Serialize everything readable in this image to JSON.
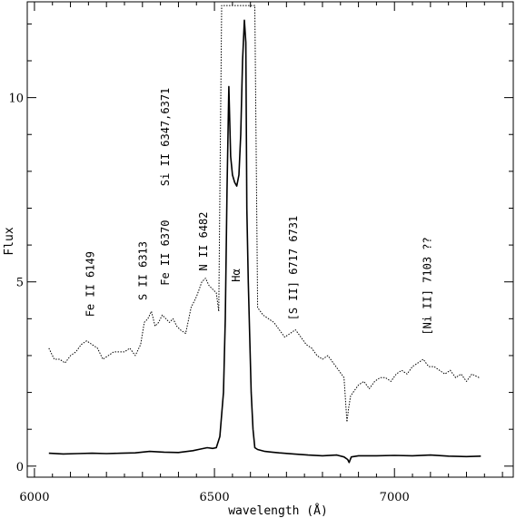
{
  "chart_data": {
    "type": "line",
    "title": "",
    "xlabel": "wavelength (Å)",
    "ylabel": "Flux",
    "xlim": [
      5980,
      7330
    ],
    "ylim": [
      -0.3,
      12.6
    ],
    "grid": false,
    "legend": "none",
    "x_ticks": [
      {
        "value": 6000,
        "label": "6000"
      },
      {
        "value": 6500,
        "label": "6500"
      },
      {
        "value": 7000,
        "label": "7000"
      }
    ],
    "y_ticks": [
      {
        "value": 0,
        "label": "0"
      },
      {
        "value": 5,
        "label": "5"
      },
      {
        "value": 10,
        "label": "10"
      }
    ],
    "series": [
      {
        "style": "dotted",
        "x": [
          6040,
          6055,
          6070,
          6085,
          6100,
          6115,
          6130,
          6145,
          6160,
          6175,
          6190,
          6205,
          6220,
          6235,
          6250,
          6265,
          6280,
          6295,
          6305,
          6315,
          6325,
          6335,
          6345,
          6355,
          6365,
          6375,
          6385,
          6395,
          6405,
          6420,
          6435,
          6450,
          6465,
          6475,
          6485,
          6495,
          6505,
          6512,
          6520,
          6530,
          6540,
          6555,
          6570,
          6585,
          6600,
          6612,
          6620,
          6635,
          6650,
          6665,
          6680,
          6695,
          6710,
          6725,
          6740,
          6755,
          6770,
          6785,
          6800,
          6815,
          6830,
          6845,
          6860,
          6868,
          6873,
          6878,
          6885,
          6900,
          6915,
          6930,
          6945,
          6960,
          6975,
          6990,
          7005,
          7020,
          7035,
          7050,
          7065,
          7080,
          7095,
          7110,
          7125,
          7140,
          7155,
          7170,
          7185,
          7200,
          7215,
          7235
        ],
        "y": [
          3.2,
          2.9,
          2.9,
          2.8,
          3.0,
          3.1,
          3.3,
          3.4,
          3.3,
          3.2,
          2.9,
          3.0,
          3.1,
          3.1,
          3.1,
          3.2,
          3.0,
          3.3,
          3.9,
          4.0,
          4.2,
          3.8,
          3.9,
          4.1,
          4.0,
          3.9,
          4.0,
          3.8,
          3.7,
          3.6,
          4.3,
          4.6,
          5.0,
          5.1,
          4.9,
          4.8,
          4.7,
          4.2,
          12.5,
          12.5,
          12.5,
          12.5,
          12.5,
          12.5,
          12.5,
          12.5,
          4.3,
          4.1,
          4.0,
          3.9,
          3.7,
          3.5,
          3.6,
          3.7,
          3.5,
          3.3,
          3.2,
          3.0,
          2.9,
          3.0,
          2.8,
          2.6,
          2.4,
          1.2,
          1.6,
          1.9,
          2.0,
          2.2,
          2.3,
          2.1,
          2.3,
          2.4,
          2.4,
          2.3,
          2.5,
          2.6,
          2.5,
          2.7,
          2.8,
          2.9,
          2.7,
          2.7,
          2.6,
          2.5,
          2.6,
          2.4,
          2.5,
          2.3,
          2.5,
          2.4
        ]
      },
      {
        "style": "solid",
        "x": [
          6040,
          6080,
          6120,
          6160,
          6200,
          6240,
          6280,
          6320,
          6360,
          6400,
          6440,
          6460,
          6480,
          6495,
          6505,
          6515,
          6525,
          6530,
          6535,
          6540,
          6545,
          6550,
          6556,
          6562,
          6568,
          6573,
          6578,
          6583,
          6587,
          6590,
          6594,
          6598,
          6602,
          6607,
          6612,
          6620,
          6640,
          6660,
          6680,
          6720,
          6760,
          6800,
          6840,
          6860,
          6870,
          6874,
          6880,
          6900,
          6950,
          7000,
          7050,
          7100,
          7150,
          7200,
          7240
        ],
        "y": [
          0.35,
          0.33,
          0.34,
          0.35,
          0.34,
          0.35,
          0.36,
          0.4,
          0.38,
          0.37,
          0.42,
          0.46,
          0.5,
          0.48,
          0.5,
          0.8,
          2.0,
          4.0,
          7.5,
          10.3,
          8.4,
          7.9,
          7.7,
          7.6,
          7.9,
          9.0,
          11.0,
          12.1,
          11.5,
          7.0,
          5.0,
          3.5,
          2.0,
          1.0,
          0.5,
          0.45,
          0.4,
          0.38,
          0.36,
          0.33,
          0.3,
          0.28,
          0.3,
          0.25,
          0.18,
          0.1,
          0.25,
          0.28,
          0.28,
          0.29,
          0.28,
          0.3,
          0.27,
          0.26,
          0.27
        ]
      }
    ],
    "annotations": [
      {
        "text": "Fe II 6149",
        "x": 6165,
        "y": 4.05
      },
      {
        "text": "S II 6313",
        "x": 6312,
        "y": 4.5
      },
      {
        "text": "Fe II 6370",
        "x": 6374,
        "y": 4.9
      },
      {
        "text": "Si II 6347,6371",
        "x": 6374,
        "y": 7.6
      },
      {
        "text": "N II 6482",
        "x": 6480,
        "y": 5.3
      },
      {
        "text": "Hα",
        "x": 6570,
        "y": 5.0
      },
      {
        "text": "[S II] 6717 6731",
        "x": 6730,
        "y": 3.95
      },
      {
        "text": "[Ni II] 7103 ??",
        "x": 7102,
        "y": 3.55
      }
    ]
  }
}
